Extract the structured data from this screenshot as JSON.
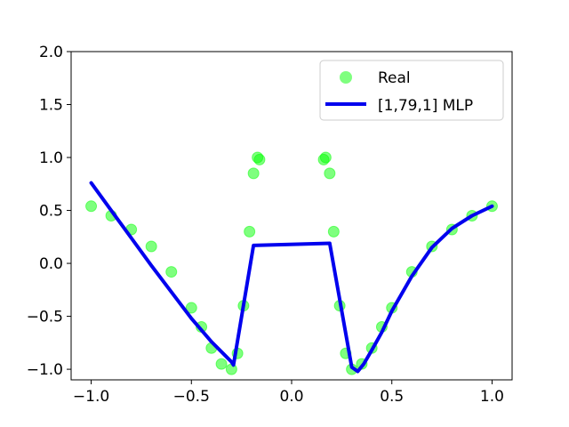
{
  "chart_data": {
    "type": "scatter",
    "xlim": [
      -1.1,
      1.1
    ],
    "ylim": [
      -1.1,
      2.0
    ],
    "x_ticks": [
      -1.0,
      -0.5,
      0.0,
      0.5,
      1.0
    ],
    "x_tick_labels": [
      "−1.0",
      "−0.5",
      "0.0",
      "0.5",
      "1.0"
    ],
    "y_ticks": [
      -1.0,
      -0.5,
      0.0,
      0.5,
      1.0,
      1.5,
      2.0
    ],
    "y_tick_labels": [
      "−1.0",
      "−0.5",
      "0.0",
      "0.5",
      "1.0",
      "1.5",
      "2.0"
    ],
    "grid": false,
    "legend_position": "top-right",
    "series": [
      {
        "name": "Real",
        "kind": "scatter",
        "color": "#00ff00",
        "x": [
          -1.0,
          -0.9,
          -0.8,
          -0.7,
          -0.6,
          -0.5,
          -0.45,
          -0.4,
          -0.35,
          -0.3,
          -0.27,
          -0.24,
          -0.21,
          -0.19,
          -0.17,
          -0.16,
          0.16,
          0.17,
          0.19,
          0.21,
          0.24,
          0.27,
          0.3,
          0.35,
          0.4,
          0.45,
          0.5,
          0.6,
          0.7,
          0.8,
          0.9,
          1.0
        ],
        "y": [
          0.54,
          0.45,
          0.32,
          0.16,
          -0.08,
          -0.42,
          -0.6,
          -0.8,
          -0.95,
          -1.0,
          -0.85,
          -0.4,
          0.3,
          0.85,
          1.0,
          0.98,
          0.98,
          1.0,
          0.85,
          0.3,
          -0.4,
          -0.85,
          -1.0,
          -0.95,
          -0.8,
          -0.6,
          -0.42,
          -0.08,
          0.16,
          0.32,
          0.45,
          0.54
        ]
      },
      {
        "name": "[1,79,1] MLP",
        "kind": "line",
        "color": "#0000ee",
        "x": [
          -1.0,
          -0.9,
          -0.8,
          -0.7,
          -0.6,
          -0.5,
          -0.4,
          -0.3,
          -0.29,
          -0.19,
          0.19,
          0.3,
          0.33,
          0.36,
          0.4,
          0.45,
          0.5,
          0.6,
          0.7,
          0.8,
          0.9,
          1.0
        ],
        "y": [
          0.76,
          0.5,
          0.24,
          -0.02,
          -0.27,
          -0.52,
          -0.74,
          -0.93,
          -0.96,
          0.17,
          0.19,
          -0.98,
          -1.02,
          -0.95,
          -0.82,
          -0.65,
          -0.45,
          -0.12,
          0.15,
          0.33,
          0.45,
          0.54
        ]
      }
    ]
  }
}
